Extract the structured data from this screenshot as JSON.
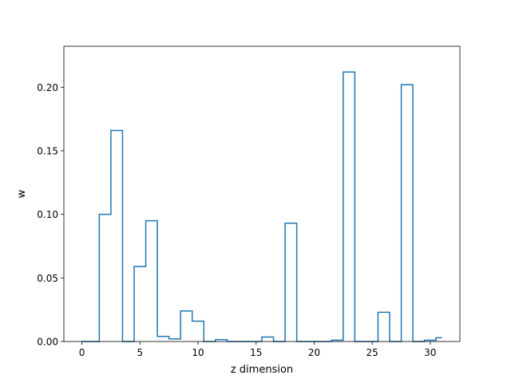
{
  "chart_data": {
    "type": "step",
    "title": "",
    "xlabel": "z dimension",
    "ylabel": "w",
    "xlim": [
      -1.55,
      32.55
    ],
    "ylim": [
      0,
      0.2322
    ],
    "x_ticks": [
      0,
      5,
      10,
      15,
      20,
      25,
      30
    ],
    "x_tick_labels": [
      "0",
      "5",
      "10",
      "15",
      "20",
      "25",
      "30"
    ],
    "y_ticks": [
      0,
      0.05,
      0.1,
      0.15,
      0.2
    ],
    "y_tick_labels": [
      "0.00",
      "0.05",
      "0.10",
      "0.15",
      "0.20"
    ],
    "grid": false,
    "step_where": "mid",
    "series": [
      {
        "color": "#1f77b4",
        "x": [
          0,
          1,
          2,
          3,
          4,
          5,
          6,
          7,
          8,
          9,
          10,
          11,
          12,
          13,
          14,
          15,
          16,
          17,
          18,
          19,
          20,
          21,
          22,
          23,
          24,
          25,
          26,
          27,
          28,
          29,
          30,
          31
        ],
        "values": [
          0,
          0,
          0.1,
          0.166,
          0,
          0.059,
          0.095,
          0.004,
          0.002,
          0.024,
          0.016,
          0,
          0.0015,
          0,
          0,
          0,
          0.0035,
          0,
          0.093,
          0,
          0,
          0,
          0.001,
          0.212,
          0,
          0,
          0.023,
          0,
          0.202,
          0,
          0.001,
          0.003
        ]
      }
    ]
  }
}
